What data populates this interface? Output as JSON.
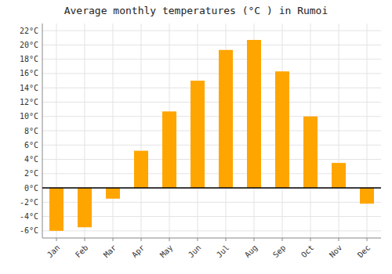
{
  "chart_data": {
    "type": "bar",
    "title": "Average monthly temperatures (°C ) in Rumoi",
    "categories": [
      "Jan",
      "Feb",
      "Mar",
      "Apr",
      "May",
      "Jun",
      "Jul",
      "Aug",
      "Sep",
      "Oct",
      "Nov",
      "Dec"
    ],
    "values": [
      -6.0,
      -5.5,
      -1.5,
      5.2,
      10.7,
      15.0,
      19.3,
      20.7,
      16.3,
      10.0,
      3.5,
      -2.2
    ],
    "color": "#FFA500",
    "ylim": [
      -7,
      23
    ],
    "yticks": [
      {
        "value": -6,
        "label": "-6°C"
      },
      {
        "value": -4,
        "label": "-4°C"
      },
      {
        "value": -2,
        "label": "-2°C"
      },
      {
        "value": 0,
        "label": "0°C"
      },
      {
        "value": 2,
        "label": "2°C"
      },
      {
        "value": 4,
        "label": "4°C"
      },
      {
        "value": 6,
        "label": "6°C"
      },
      {
        "value": 8,
        "label": "8°C"
      },
      {
        "value": 10,
        "label": "10°C"
      },
      {
        "value": 12,
        "label": "12°C"
      },
      {
        "value": 14,
        "label": "14°C"
      },
      {
        "value": 16,
        "label": "16°C"
      },
      {
        "value": 18,
        "label": "18°C"
      },
      {
        "value": 20,
        "label": "20°C"
      },
      {
        "value": 22,
        "label": "22°C"
      }
    ],
    "grid": true
  }
}
